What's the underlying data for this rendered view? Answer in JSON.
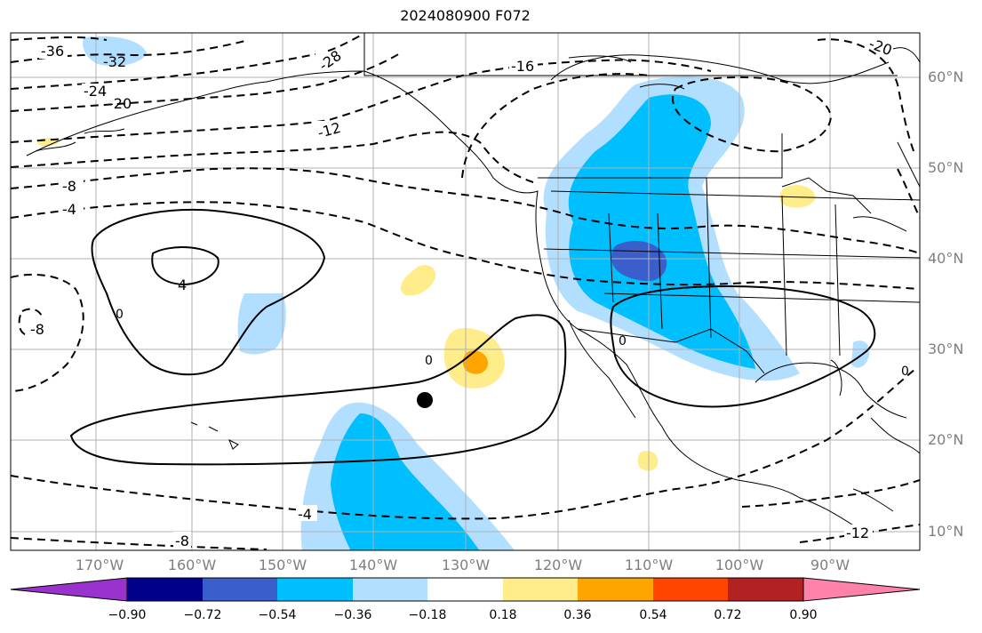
{
  "title": "2024080900 F072",
  "map": {
    "projection": "mercator",
    "lon_range": [
      -180,
      -80
    ],
    "lat_range": [
      8,
      65
    ],
    "marker": {
      "name": "storm-center",
      "lon": -134,
      "lat": 24.5
    }
  },
  "lat_labels": [
    {
      "label": "60°N",
      "lat": 60
    },
    {
      "label": "50°N",
      "lat": 50
    },
    {
      "label": "40°N",
      "lat": 40
    },
    {
      "label": "30°N",
      "lat": 30
    },
    {
      "label": "20°N",
      "lat": 20
    },
    {
      "label": "10°N",
      "lat": 10
    }
  ],
  "lon_labels": [
    {
      "label": "170°W",
      "lon": -170
    },
    {
      "label": "160°W",
      "lon": -160
    },
    {
      "label": "150°W",
      "lon": -150
    },
    {
      "label": "140°W",
      "lon": -140
    },
    {
      "label": "130°W",
      "lon": -130
    },
    {
      "label": "120°W",
      "lon": -120
    },
    {
      "label": "110°W",
      "lon": -110
    },
    {
      "label": "100°W",
      "lon": -100
    },
    {
      "label": "90°W",
      "lon": -90
    }
  ],
  "contour_labels": [
    "-36",
    "-32",
    "-28",
    "-24",
    "-20",
    "-16",
    "-12",
    "-8",
    "-4",
    "0",
    "4",
    "-20",
    "-8",
    "-12",
    "-4",
    "-8",
    "0",
    "0",
    "0"
  ],
  "colorbar": {
    "colors": [
      "#9a32cd",
      "#00008b",
      "#3a5fcd",
      "#00bfff",
      "#b2dfff",
      "#ffffff",
      "#ffec8b",
      "#ffa500",
      "#ff4500",
      "#b22222",
      "#ff82ab"
    ],
    "ticks": [
      "−0.90",
      "−0.72",
      "−0.54",
      "−0.36",
      "−0.18",
      "0.18",
      "0.36",
      "0.54",
      "0.72",
      "0.90"
    ]
  }
}
